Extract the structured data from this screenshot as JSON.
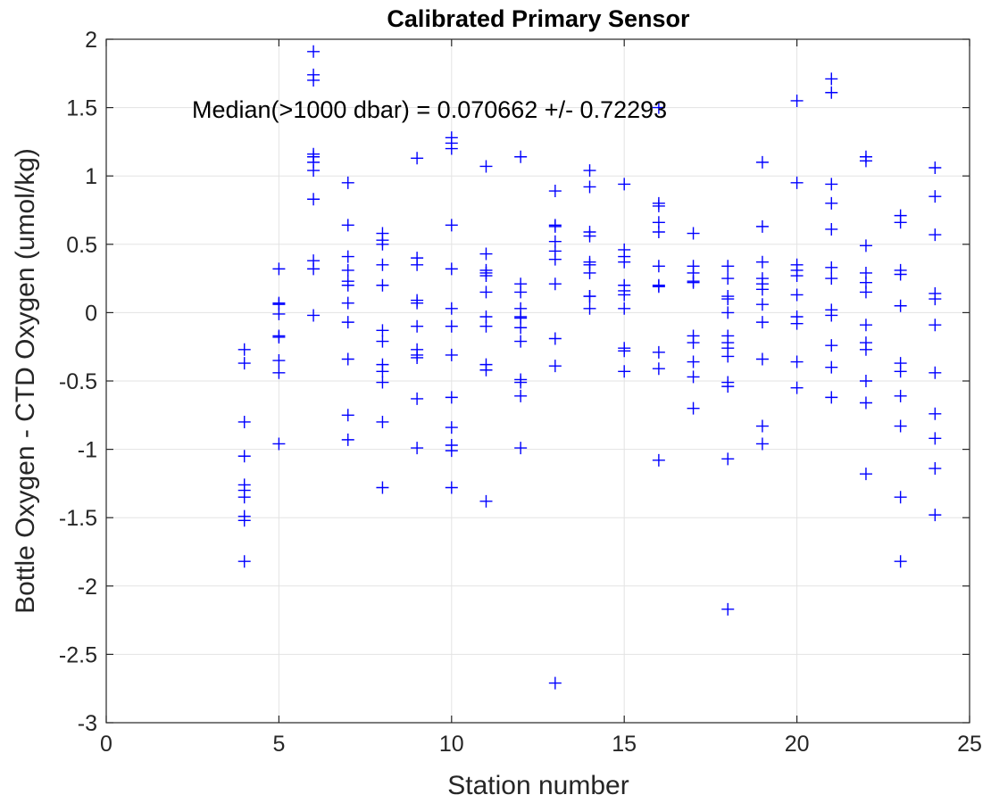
{
  "chart_data": {
    "type": "scatter",
    "title": "Calibrated Primary Sensor",
    "xlabel": "Station number",
    "ylabel": "Bottle Oxygen - CTD Oxygen (umol/kg)",
    "xlim": [
      0,
      25
    ],
    "ylim": [
      -3,
      2
    ],
    "xticks": [
      0,
      5,
      10,
      15,
      20,
      25
    ],
    "yticks": [
      -3,
      -2.5,
      -2,
      -1.5,
      -1,
      -0.5,
      0,
      0.5,
      1,
      1.5,
      2
    ],
    "xtick_labels": [
      "0",
      "5",
      "10",
      "15",
      "20",
      "25"
    ],
    "ytick_labels": [
      "-3",
      "-2.5",
      "-2",
      "-1.5",
      "-1",
      "-0.5",
      "0",
      "0.5",
      "1",
      "1.5",
      "2"
    ],
    "grid": true,
    "marker": "+",
    "color": "#0000ff",
    "annotation": "Median(>1000 dbar) = 0.070662 +/- 0.72293",
    "series": [
      {
        "points": [
          [
            4,
            -0.27
          ],
          [
            4,
            -0.37
          ],
          [
            4,
            -0.8
          ],
          [
            4,
            -1.05
          ],
          [
            4,
            -1.26
          ],
          [
            4,
            -1.3
          ],
          [
            4,
            -1.35
          ],
          [
            4,
            -1.49
          ],
          [
            4,
            -1.52
          ],
          [
            4,
            -1.82
          ],
          [
            5,
            0.32
          ],
          [
            5,
            0.07
          ],
          [
            5,
            0.06
          ],
          [
            5,
            -0.01
          ],
          [
            5,
            -0.17
          ],
          [
            5,
            -0.18
          ],
          [
            5,
            -0.35
          ],
          [
            5,
            -0.44
          ],
          [
            5,
            -0.96
          ],
          [
            6,
            1.91
          ],
          [
            6,
            1.74
          ],
          [
            6,
            1.7
          ],
          [
            6,
            1.16
          ],
          [
            6,
            1.14
          ],
          [
            6,
            1.1
          ],
          [
            6,
            1.04
          ],
          [
            6,
            0.83
          ],
          [
            6,
            0.38
          ],
          [
            6,
            0.32
          ],
          [
            6,
            -0.02
          ],
          [
            7,
            0.95
          ],
          [
            7,
            0.64
          ],
          [
            7,
            0.41
          ],
          [
            7,
            0.31
          ],
          [
            7,
            0.23
          ],
          [
            7,
            0.2
          ],
          [
            7,
            0.07
          ],
          [
            7,
            -0.07
          ],
          [
            7,
            -0.34
          ],
          [
            7,
            -0.75
          ],
          [
            7,
            -0.93
          ],
          [
            8,
            0.58
          ],
          [
            8,
            0.53
          ],
          [
            8,
            0.5
          ],
          [
            8,
            0.35
          ],
          [
            8,
            0.2
          ],
          [
            8,
            -0.13
          ],
          [
            8,
            -0.21
          ],
          [
            8,
            -0.38
          ],
          [
            8,
            -0.43
          ],
          [
            8,
            -0.51
          ],
          [
            8,
            -0.8
          ],
          [
            8,
            -1.28
          ],
          [
            9,
            1.13
          ],
          [
            9,
            0.4
          ],
          [
            9,
            0.35
          ],
          [
            9,
            0.09
          ],
          [
            9,
            0.07
          ],
          [
            9,
            -0.1
          ],
          [
            9,
            -0.27
          ],
          [
            9,
            -0.31
          ],
          [
            9,
            -0.33
          ],
          [
            9,
            -0.63
          ],
          [
            9,
            -0.99
          ],
          [
            10,
            1.28
          ],
          [
            10,
            1.24
          ],
          [
            10,
            1.2
          ],
          [
            10,
            0.64
          ],
          [
            10,
            0.32
          ],
          [
            10,
            0.03
          ],
          [
            10,
            -0.1
          ],
          [
            10,
            -0.31
          ],
          [
            10,
            -0.62
          ],
          [
            10,
            -0.84
          ],
          [
            10,
            -0.97
          ],
          [
            10,
            -1.01
          ],
          [
            10,
            -1.28
          ],
          [
            11,
            1.07
          ],
          [
            11,
            0.43
          ],
          [
            11,
            0.31
          ],
          [
            11,
            0.29
          ],
          [
            11,
            0.27
          ],
          [
            11,
            0.15
          ],
          [
            11,
            -0.03
          ],
          [
            11,
            -0.1
          ],
          [
            11,
            -0.38
          ],
          [
            11,
            -0.42
          ],
          [
            11,
            -1.38
          ],
          [
            12,
            1.14
          ],
          [
            12,
            0.21
          ],
          [
            12,
            0.15
          ],
          [
            12,
            0.03
          ],
          [
            12,
            -0.03
          ],
          [
            12,
            -0.04
          ],
          [
            12,
            -0.11
          ],
          [
            12,
            -0.21
          ],
          [
            12,
            -0.49
          ],
          [
            12,
            -0.51
          ],
          [
            12,
            -0.61
          ],
          [
            12,
            -0.99
          ],
          [
            13,
            0.89
          ],
          [
            13,
            0.64
          ],
          [
            13,
            0.63
          ],
          [
            13,
            0.52
          ],
          [
            13,
            0.45
          ],
          [
            13,
            0.39
          ],
          [
            13,
            0.21
          ],
          [
            13,
            -0.19
          ],
          [
            13,
            -0.39
          ],
          [
            13,
            -2.71
          ],
          [
            14,
            1.04
          ],
          [
            14,
            0.92
          ],
          [
            14,
            0.59
          ],
          [
            14,
            0.56
          ],
          [
            14,
            0.37
          ],
          [
            14,
            0.35
          ],
          [
            14,
            0.29
          ],
          [
            14,
            0.12
          ],
          [
            14,
            0.12
          ],
          [
            14,
            0.03
          ],
          [
            15,
            0.94
          ],
          [
            15,
            0.46
          ],
          [
            15,
            0.41
          ],
          [
            15,
            0.37
          ],
          [
            15,
            0.2
          ],
          [
            15,
            0.16
          ],
          [
            15,
            0.13
          ],
          [
            15,
            0.03
          ],
          [
            15,
            -0.26
          ],
          [
            15,
            -0.28
          ],
          [
            15,
            -0.43
          ],
          [
            16,
            1.5
          ],
          [
            16,
            0.8
          ],
          [
            16,
            0.78
          ],
          [
            16,
            0.66
          ],
          [
            16,
            0.59
          ],
          [
            16,
            0.34
          ],
          [
            16,
            0.2
          ],
          [
            16,
            0.19
          ],
          [
            16,
            -0.29
          ],
          [
            16,
            -0.41
          ],
          [
            16,
            -1.08
          ],
          [
            17,
            0.58
          ],
          [
            17,
            0.34
          ],
          [
            17,
            0.29
          ],
          [
            17,
            0.23
          ],
          [
            17,
            0.22
          ],
          [
            17,
            -0.17
          ],
          [
            17,
            -0.22
          ],
          [
            17,
            -0.36
          ],
          [
            17,
            -0.47
          ],
          [
            17,
            -0.7
          ],
          [
            18,
            0.34
          ],
          [
            18,
            0.25
          ],
          [
            18,
            0.12
          ],
          [
            18,
            0.1
          ],
          [
            18,
            0.0
          ],
          [
            18,
            -0.17
          ],
          [
            18,
            -0.22
          ],
          [
            18,
            -0.26
          ],
          [
            18,
            -0.32
          ],
          [
            18,
            -0.51
          ],
          [
            18,
            -0.54
          ],
          [
            18,
            -1.07
          ],
          [
            18,
            -2.17
          ],
          [
            19,
            1.1
          ],
          [
            19,
            0.63
          ],
          [
            19,
            0.37
          ],
          [
            19,
            0.25
          ],
          [
            19,
            0.21
          ],
          [
            19,
            0.17
          ],
          [
            19,
            0.06
          ],
          [
            19,
            -0.07
          ],
          [
            19,
            -0.34
          ],
          [
            19,
            -0.83
          ],
          [
            19,
            -0.96
          ],
          [
            20,
            1.55
          ],
          [
            20,
            0.95
          ],
          [
            20,
            0.35
          ],
          [
            20,
            0.31
          ],
          [
            20,
            0.27
          ],
          [
            20,
            0.13
          ],
          [
            20,
            -0.03
          ],
          [
            20,
            -0.08
          ],
          [
            20,
            -0.36
          ],
          [
            20,
            -0.55
          ],
          [
            21,
            1.71
          ],
          [
            21,
            1.61
          ],
          [
            21,
            0.94
          ],
          [
            21,
            0.8
          ],
          [
            21,
            0.61
          ],
          [
            21,
            0.33
          ],
          [
            21,
            0.25
          ],
          [
            21,
            0.02
          ],
          [
            21,
            -0.02
          ],
          [
            21,
            -0.24
          ],
          [
            21,
            -0.4
          ],
          [
            21,
            -0.62
          ],
          [
            22,
            1.14
          ],
          [
            22,
            1.11
          ],
          [
            22,
            0.49
          ],
          [
            22,
            0.29
          ],
          [
            22,
            0.22
          ],
          [
            22,
            0.15
          ],
          [
            22,
            -0.09
          ],
          [
            22,
            -0.22
          ],
          [
            22,
            -0.27
          ],
          [
            22,
            -0.5
          ],
          [
            22,
            -0.66
          ],
          [
            22,
            -1.18
          ],
          [
            23,
            0.71
          ],
          [
            23,
            0.66
          ],
          [
            23,
            0.31
          ],
          [
            23,
            0.28
          ],
          [
            23,
            0.05
          ],
          [
            23,
            -0.37
          ],
          [
            23,
            -0.43
          ],
          [
            23,
            -0.61
          ],
          [
            23,
            -0.83
          ],
          [
            23,
            -1.35
          ],
          [
            23,
            -1.82
          ],
          [
            24,
            1.06
          ],
          [
            24,
            0.85
          ],
          [
            24,
            0.57
          ],
          [
            24,
            0.14
          ],
          [
            24,
            0.1
          ],
          [
            24,
            -0.09
          ],
          [
            24,
            -0.44
          ],
          [
            24,
            -0.74
          ],
          [
            24,
            -0.92
          ],
          [
            24,
            -1.14
          ],
          [
            24,
            -1.48
          ]
        ]
      }
    ]
  }
}
